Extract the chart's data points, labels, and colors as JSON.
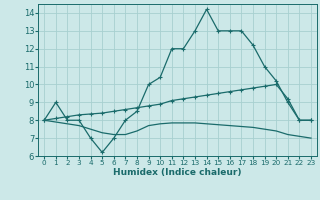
{
  "xlabel": "Humidex (Indice chaleur)",
  "bg_color": "#cce8e8",
  "line_color": "#1a6b6b",
  "grid_color": "#a8d0d0",
  "ylim": [
    6,
    14.5
  ],
  "xlim": [
    -0.5,
    23.5
  ],
  "yticks": [
    6,
    7,
    8,
    9,
    10,
    11,
    12,
    13,
    14
  ],
  "xticks": [
    0,
    1,
    2,
    3,
    4,
    5,
    6,
    7,
    8,
    9,
    10,
    11,
    12,
    13,
    14,
    15,
    16,
    17,
    18,
    19,
    20,
    21,
    22,
    23
  ],
  "line1_x": [
    0,
    1,
    2,
    3,
    4,
    5,
    6,
    7,
    8,
    9,
    10,
    11,
    12,
    13,
    14,
    15,
    16,
    17,
    18,
    19,
    20,
    21,
    22,
    23
  ],
  "line1_y": [
    8.0,
    9.0,
    8.0,
    8.0,
    7.0,
    6.2,
    7.0,
    8.0,
    8.5,
    10.0,
    10.4,
    12.0,
    12.0,
    13.0,
    14.2,
    13.0,
    13.0,
    13.0,
    12.2,
    11.0,
    10.2,
    9.0,
    8.0,
    8.0
  ],
  "line2_x": [
    0,
    1,
    2,
    3,
    4,
    5,
    6,
    7,
    8,
    9,
    10,
    11,
    12,
    13,
    14,
    15,
    16,
    17,
    18,
    19,
    20,
    21,
    22,
    23
  ],
  "line2_y": [
    8.0,
    8.1,
    8.2,
    8.3,
    8.35,
    8.4,
    8.5,
    8.6,
    8.7,
    8.8,
    8.9,
    9.1,
    9.2,
    9.3,
    9.4,
    9.5,
    9.6,
    9.7,
    9.8,
    9.9,
    10.0,
    9.2,
    8.0,
    8.0
  ],
  "line3_x": [
    0,
    1,
    2,
    3,
    4,
    5,
    6,
    7,
    8,
    9,
    10,
    11,
    12,
    13,
    14,
    15,
    16,
    17,
    18,
    19,
    20,
    21,
    22,
    23
  ],
  "line3_y": [
    8.0,
    7.9,
    7.8,
    7.7,
    7.5,
    7.3,
    7.2,
    7.2,
    7.4,
    7.7,
    7.8,
    7.85,
    7.85,
    7.85,
    7.8,
    7.75,
    7.7,
    7.65,
    7.6,
    7.5,
    7.4,
    7.2,
    7.1,
    7.0
  ],
  "xlabel_fontsize": 6.5,
  "tick_fontsize_x": 5.2,
  "tick_fontsize_y": 6.0
}
